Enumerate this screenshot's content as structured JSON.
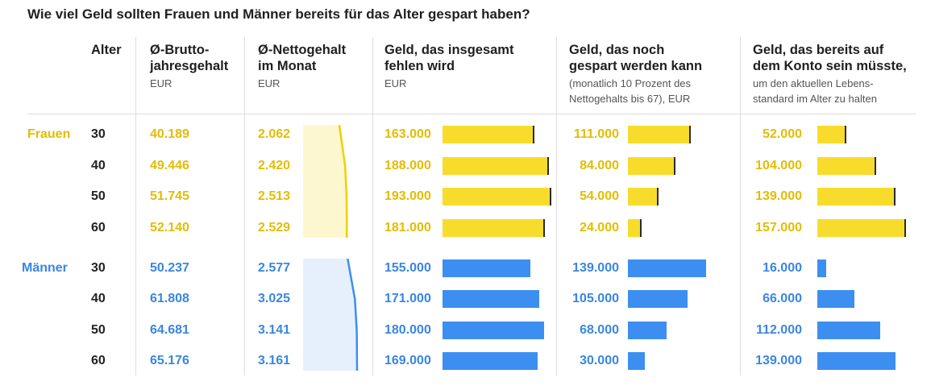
{
  "title": "Wie viel Geld sollten Frauen und Männer bereits für das Alter gespart haben?",
  "headers": {
    "alter": "Alter",
    "brutto": "Ø-Brutto-\njahresgehalt",
    "brutto_unit": "EUR",
    "netto": "Ø-Nettogehalt\nim Monat",
    "netto_unit": "EUR",
    "fehlen": "Geld, das insgesamt\nfehlen wird",
    "fehlen_unit": "EUR",
    "gespart": "Geld, das noch\ngespart werden kann",
    "gespart_sub": "(monatlich 10 Prozent des\nNettogehalts bis 67), EUR",
    "konto": "Geld, das bereits auf\ndem Konto sein müsste,",
    "konto_sub": "um den aktuellen Lebens-\nstandard im Alter zu halten"
  },
  "colors": {
    "frauen": "#f8dc2c",
    "frauen_text": "#e3bd00",
    "frauen_area": "#fdf7cf",
    "maenner": "#3c8ff0",
    "maenner_text": "#3a86e0",
    "maenner_area": "#e6f0fc"
  },
  "chart_data": {
    "type": "table",
    "columns": [
      "Alter",
      "Ø-Bruttojahresgehalt",
      "Ø-Nettogehalt im Monat",
      "Geld, das insgesamt fehlen wird",
      "Geld, das noch gespart werden kann",
      "Geld, das bereits auf dem Konto sein müsste"
    ],
    "groups": [
      {
        "name": "Frauen",
        "rows": [
          {
            "age": "30",
            "brutto": "40.189",
            "netto": "2.062",
            "fehlen": "163.000",
            "gespart": "111.000",
            "konto": "52.000",
            "netto_v": 2062,
            "fehlen_v": 163000,
            "gespart_v": 111000,
            "konto_v": 52000
          },
          {
            "age": "40",
            "brutto": "49.446",
            "netto": "2.420",
            "fehlen": "188.000",
            "gespart": "84.000",
            "konto": "104.000",
            "netto_v": 2420,
            "fehlen_v": 188000,
            "gespart_v": 84000,
            "konto_v": 104000
          },
          {
            "age": "50",
            "brutto": "51.745",
            "netto": "2.513",
            "fehlen": "193.000",
            "gespart": "54.000",
            "konto": "139.000",
            "netto_v": 2513,
            "fehlen_v": 193000,
            "gespart_v": 54000,
            "konto_v": 139000
          },
          {
            "age": "60",
            "brutto": "52.140",
            "netto": "2.529",
            "fehlen": "181.000",
            "gespart": "24.000",
            "konto": "157.000",
            "netto_v": 2529,
            "fehlen_v": 181000,
            "gespart_v": 24000,
            "konto_v": 157000
          }
        ]
      },
      {
        "name": "Männer",
        "rows": [
          {
            "age": "30",
            "brutto": "50.237",
            "netto": "2.577",
            "fehlen": "155.000",
            "gespart": "139.000",
            "konto": "16.000",
            "netto_v": 2577,
            "fehlen_v": 155000,
            "gespart_v": 139000,
            "konto_v": 16000
          },
          {
            "age": "40",
            "brutto": "61.808",
            "netto": "3.025",
            "fehlen": "171.000",
            "gespart": "105.000",
            "konto": "66.000",
            "netto_v": 3025,
            "fehlen_v": 171000,
            "gespart_v": 105000,
            "konto_v": 66000
          },
          {
            "age": "50",
            "brutto": "64.681",
            "netto": "3.141",
            "fehlen": "180.000",
            "gespart": "68.000",
            "konto": "112.000",
            "netto_v": 3141,
            "fehlen_v": 180000,
            "gespart_v": 68000,
            "konto_v": 112000
          },
          {
            "age": "60",
            "brutto": "65.176",
            "netto": "3.161",
            "fehlen": "169.000",
            "gespart": "30.000",
            "konto": "139.000",
            "netto_v": 3161,
            "fehlen_v": 169000,
            "gespart_v": 30000,
            "konto_v": 139000
          }
        ]
      }
    ]
  }
}
